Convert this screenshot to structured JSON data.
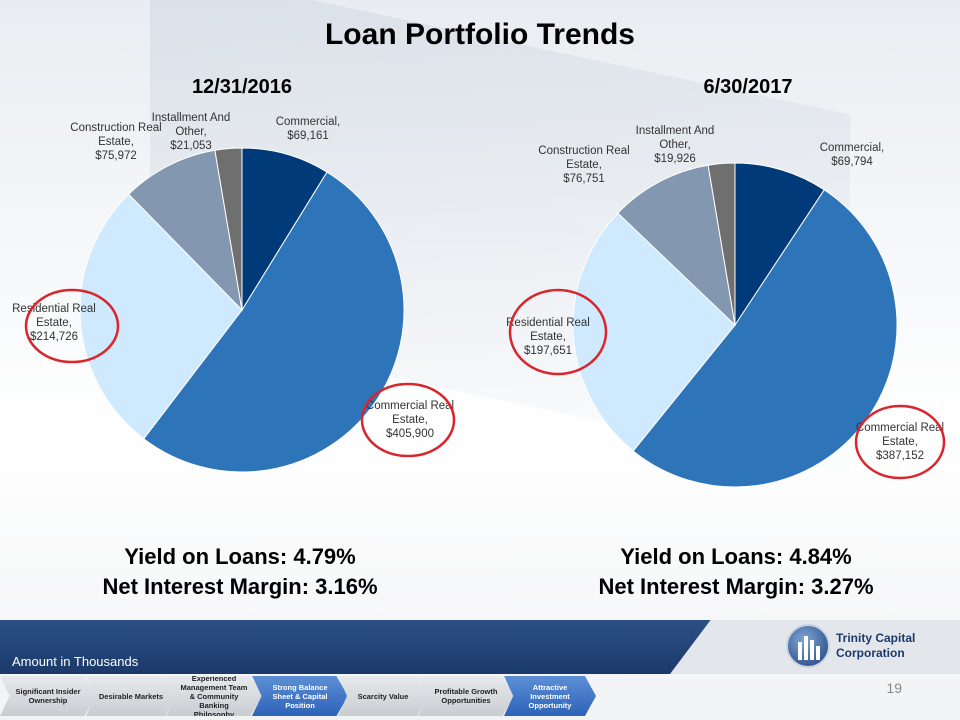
{
  "title": "Loan Portfolio Trends",
  "chart_data": [
    {
      "type": "pie",
      "title": "12/31/2016",
      "categories": [
        "Commercial",
        "Commercial Real Estate",
        "Residential Real Estate",
        "Construction Real Estate",
        "Installment And Other"
      ],
      "values": [
        69161,
        405900,
        214726,
        75972,
        21053
      ],
      "labels": [
        "Commercial, $69,161",
        "Commercial Real Estate, $405,900",
        "Residential Real Estate, $214,726",
        "Construction Real Estate, $75,972",
        "Installment And Other, $21,053"
      ],
      "colors": [
        "#003a78",
        "#2e74b8",
        "#cfeaff",
        "#8497b0",
        "#6f6f6f"
      ],
      "circled": [
        "Commercial Real Estate",
        "Residential Real Estate"
      ]
    },
    {
      "type": "pie",
      "title": "6/30/2017",
      "categories": [
        "Commercial",
        "Commercial Real Estate",
        "Residential Real Estate",
        "Construction Real Estate",
        "Installment And Other"
      ],
      "values": [
        69794,
        387152,
        197651,
        76751,
        19926
      ],
      "labels": [
        "Commercial, $69,794",
        "Commercial Real Estate, $387,152",
        "Residential Real Estate, $197,651",
        "Construction Real Estate, $76,751",
        "Installment And Other, $19,926"
      ],
      "colors": [
        "#003a78",
        "#2e74b8",
        "#cfeaff",
        "#8497b0",
        "#6f6f6f"
      ],
      "circled": [
        "Commercial Real Estate",
        "Residential Real Estate"
      ]
    }
  ],
  "metrics": [
    {
      "yield": "Yield on Loans: 4.79%",
      "nim": "Net Interest Margin: 3.16%"
    },
    {
      "yield": "Yield on Loans: 4.84%",
      "nim": "Net Interest Margin: 3.27%"
    }
  ],
  "footer": {
    "note": "Amount in Thousands",
    "logo_line1": "Trinity Capital",
    "logo_line2": "Corporation",
    "page_number": "19"
  },
  "nav_steps": [
    {
      "label": "Significant Insider Ownership",
      "active": false
    },
    {
      "label": "Desirable Markets",
      "active": false
    },
    {
      "label": "Experienced Management Team & Community Banking Philosophy",
      "active": false
    },
    {
      "label": "Strong Balance Sheet & Capital Position",
      "active": true
    },
    {
      "label": "Scarcity Value",
      "active": false
    },
    {
      "label": "Profitable Growth Opportunities",
      "active": false
    },
    {
      "label": "Attractive Investment Opportunity",
      "active": true
    }
  ],
  "colors": {
    "annotation_circle": "#d9262c",
    "footer_blue": "#1b3a6b"
  }
}
